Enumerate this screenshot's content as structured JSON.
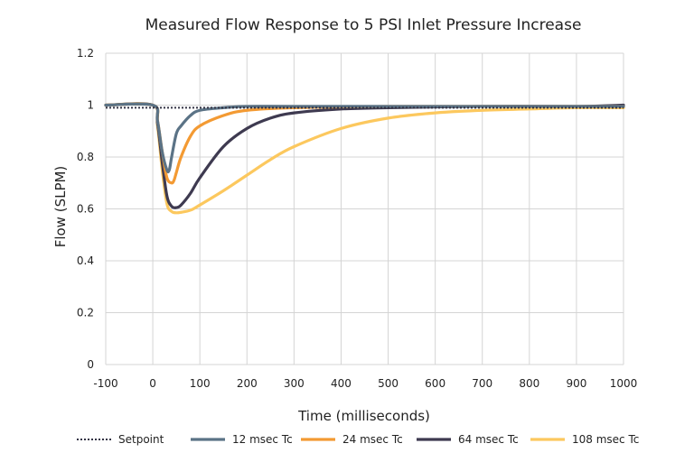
{
  "chart_data": {
    "type": "line",
    "title": "Measured Flow Response to 5 PSI Inlet Pressure Increase",
    "xlabel": "Time (milliseconds)",
    "ylabel": "Flow (SLPM)",
    "xlim": [
      -100,
      1000
    ],
    "ylim": [
      0,
      1.2
    ],
    "xticks": [
      -100,
      0,
      100,
      200,
      300,
      400,
      500,
      600,
      700,
      800,
      900,
      1000
    ],
    "yticks": [
      0,
      0.2,
      0.4,
      0.6,
      0.8,
      1,
      1.2
    ],
    "xtick_labels": [
      "-100",
      "0",
      "100",
      "200",
      "300",
      "400",
      "500",
      "600",
      "700",
      "800",
      "900",
      "1000"
    ],
    "ytick_labels": [
      "0",
      "0.2",
      "0.4",
      "0.6",
      "0.8",
      "1",
      "1.2"
    ],
    "grid": true,
    "legend_position": "bottom",
    "series": [
      {
        "name": "Setpoint",
        "color": "#333344",
        "dash": "dotted",
        "x": [
          -100,
          1000
        ],
        "y": [
          0.99,
          0.99
        ]
      },
      {
        "name": "12 msec Tc",
        "color": "#5b7386",
        "dash": "solid",
        "x": [
          -100,
          0,
          10,
          20,
          30,
          35,
          40,
          50,
          60,
          80,
          100,
          150,
          200,
          300,
          500,
          700,
          900,
          1000
        ],
        "y": [
          1.0,
          1.0,
          0.94,
          0.82,
          0.75,
          0.75,
          0.8,
          0.89,
          0.92,
          0.96,
          0.98,
          0.99,
          0.995,
          0.995,
          0.995,
          0.995,
          0.995,
          0.995
        ]
      },
      {
        "name": "24 msec Tc",
        "color": "#f39a33",
        "dash": "solid",
        "x": [
          -100,
          0,
          10,
          20,
          30,
          40,
          45,
          50,
          60,
          80,
          100,
          150,
          200,
          300,
          500,
          700,
          900,
          1000
        ],
        "y": [
          1.0,
          1.0,
          0.94,
          0.82,
          0.72,
          0.7,
          0.71,
          0.74,
          0.8,
          0.88,
          0.92,
          0.96,
          0.98,
          0.99,
          0.995,
          0.995,
          0.995,
          0.995
        ]
      },
      {
        "name": "64 msec Tc",
        "color": "#3e3a50",
        "dash": "solid",
        "x": [
          -100,
          0,
          10,
          20,
          30,
          40,
          50,
          60,
          80,
          100,
          150,
          200,
          250,
          300,
          400,
          500,
          700,
          900,
          1000
        ],
        "y": [
          1.0,
          1.0,
          0.93,
          0.78,
          0.65,
          0.61,
          0.605,
          0.615,
          0.66,
          0.72,
          0.84,
          0.91,
          0.95,
          0.97,
          0.985,
          0.99,
          0.995,
          0.995,
          1.0
        ]
      },
      {
        "name": "108 msec Tc",
        "color": "#fcc85e",
        "dash": "solid",
        "x": [
          -100,
          0,
          10,
          20,
          30,
          40,
          50,
          60,
          80,
          100,
          150,
          200,
          250,
          300,
          400,
          500,
          600,
          700,
          800,
          900,
          1000
        ],
        "y": [
          1.0,
          1.0,
          0.92,
          0.75,
          0.62,
          0.59,
          0.585,
          0.587,
          0.595,
          0.615,
          0.67,
          0.73,
          0.79,
          0.84,
          0.91,
          0.95,
          0.97,
          0.98,
          0.985,
          0.99,
          0.99
        ]
      }
    ]
  }
}
